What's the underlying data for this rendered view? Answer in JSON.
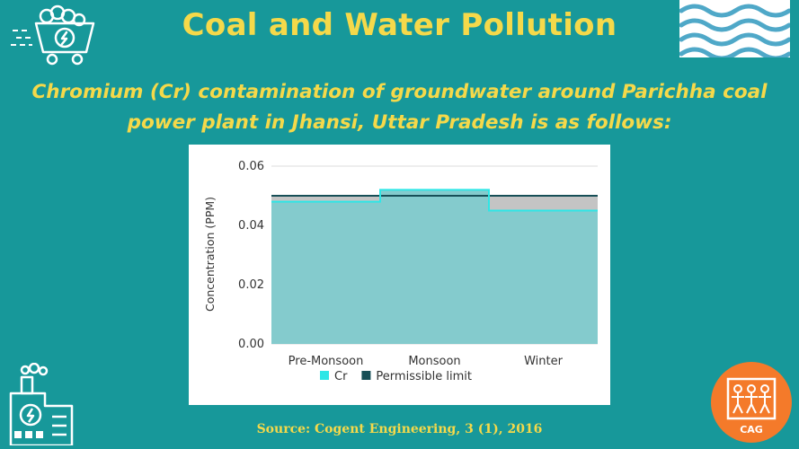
{
  "header": {
    "title": "Coal and Water Pollution",
    "subtitle_line1": "Chromium (Cr) contamination of groundwater around Parichha coal",
    "subtitle_line2": "power plant in Jhansi, Uttar Pradesh is as follows:"
  },
  "footer": {
    "source": "Source: Cogent Engineering, 3 (1), 2016"
  },
  "logo": {
    "text": "CAG"
  },
  "colors": {
    "background": "#17989a",
    "accent": "#f5d94a",
    "cr_line": "#2ee6e6",
    "cr_fill": "#84cbcd",
    "limit_line": "#174f57",
    "limit_fill": "#c4c4c4",
    "logo": "#f47a2a"
  },
  "chart_data": {
    "type": "area",
    "categories": [
      "Pre-Monsoon",
      "Monsoon",
      "Winter"
    ],
    "series": [
      {
        "name": "Cr",
        "values": [
          0.048,
          0.052,
          0.045
        ]
      },
      {
        "name": "Permissible limit",
        "values": [
          0.05,
          0.05,
          0.05
        ]
      }
    ],
    "ylabel": "Concentration (PPM)",
    "ylim": [
      0,
      0.06
    ],
    "yticks": [
      "0.00",
      "0.02",
      "0.04",
      "0.06"
    ],
    "grid": true,
    "legend": "bottom"
  }
}
